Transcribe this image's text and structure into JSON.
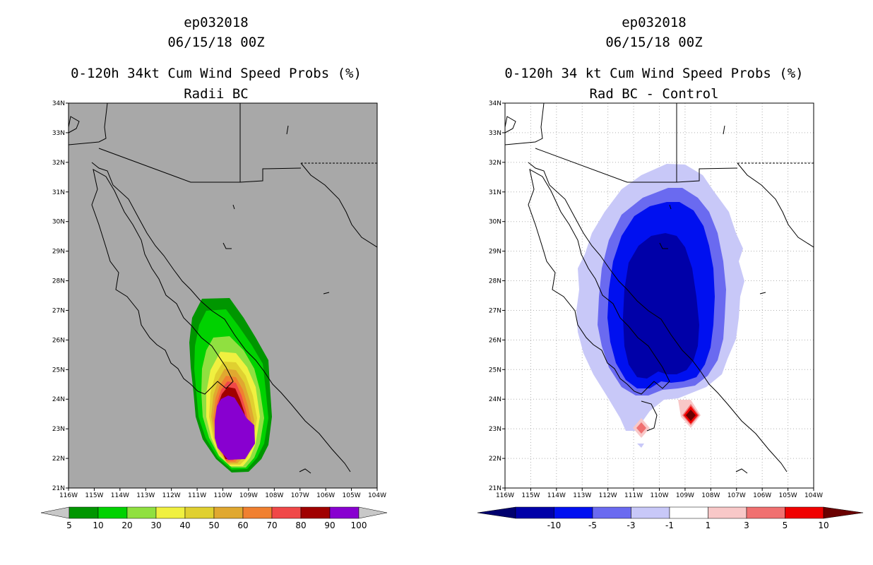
{
  "left_panel": {
    "storm_id": "ep032018",
    "datetime": "06/15/18 00Z",
    "title": "0-120h 34kt Cum Wind Speed Probs (%)",
    "subtitle": "Radii BC",
    "lat_labels": [
      "34N",
      "33N",
      "32N",
      "31N",
      "30N",
      "29N",
      "28N",
      "27N",
      "26N",
      "25N",
      "24N",
      "23N",
      "22N",
      "21N"
    ],
    "lon_labels": [
      "116W",
      "115W",
      "114W",
      "113W",
      "112W",
      "111W",
      "110W",
      "109W",
      "108W",
      "107W",
      "106W",
      "105W",
      "104W"
    ],
    "colorbar": {
      "colors": [
        "#009600",
        "#00d200",
        "#90e040",
        "#f0f040",
        "#e0d030",
        "#e0a830",
        "#f08030",
        "#f04848",
        "#a00000",
        "#8800d0"
      ],
      "labels": [
        "5",
        "10",
        "20",
        "30",
        "40",
        "50",
        "60",
        "70",
        "80",
        "90",
        "100"
      ],
      "end_color": "#c8c8c8"
    },
    "land_color": "#a8a8a8"
  },
  "right_panel": {
    "storm_id": "ep032018",
    "datetime": "06/15/18 00Z",
    "title": "0-120h 34 kt Cum Wind Speed Probs (%)",
    "subtitle": "Rad BC - Control",
    "lat_labels": [
      "34N",
      "33N",
      "32N",
      "31N",
      "30N",
      "29N",
      "28N",
      "27N",
      "26N",
      "25N",
      "24N",
      "23N",
      "22N",
      "21N"
    ],
    "lon_labels": [
      "116W",
      "115W",
      "114W",
      "113W",
      "112W",
      "111W",
      "110W",
      "109W",
      "108W",
      "107W",
      "106W",
      "105W",
      "104W"
    ],
    "colorbar": {
      "colors": [
        "#0000a8",
        "#0010f0",
        "#6a6af0",
        "#c8c8f8",
        "#ffffff",
        "#f8c8c8",
        "#f07070",
        "#f00000"
      ],
      "labels": [
        "-10",
        "-5",
        "-3",
        "-1",
        "1",
        "3",
        "5",
        "10"
      ],
      "left_end_color": "#00006e",
      "right_end_color": "#6a0000"
    }
  }
}
